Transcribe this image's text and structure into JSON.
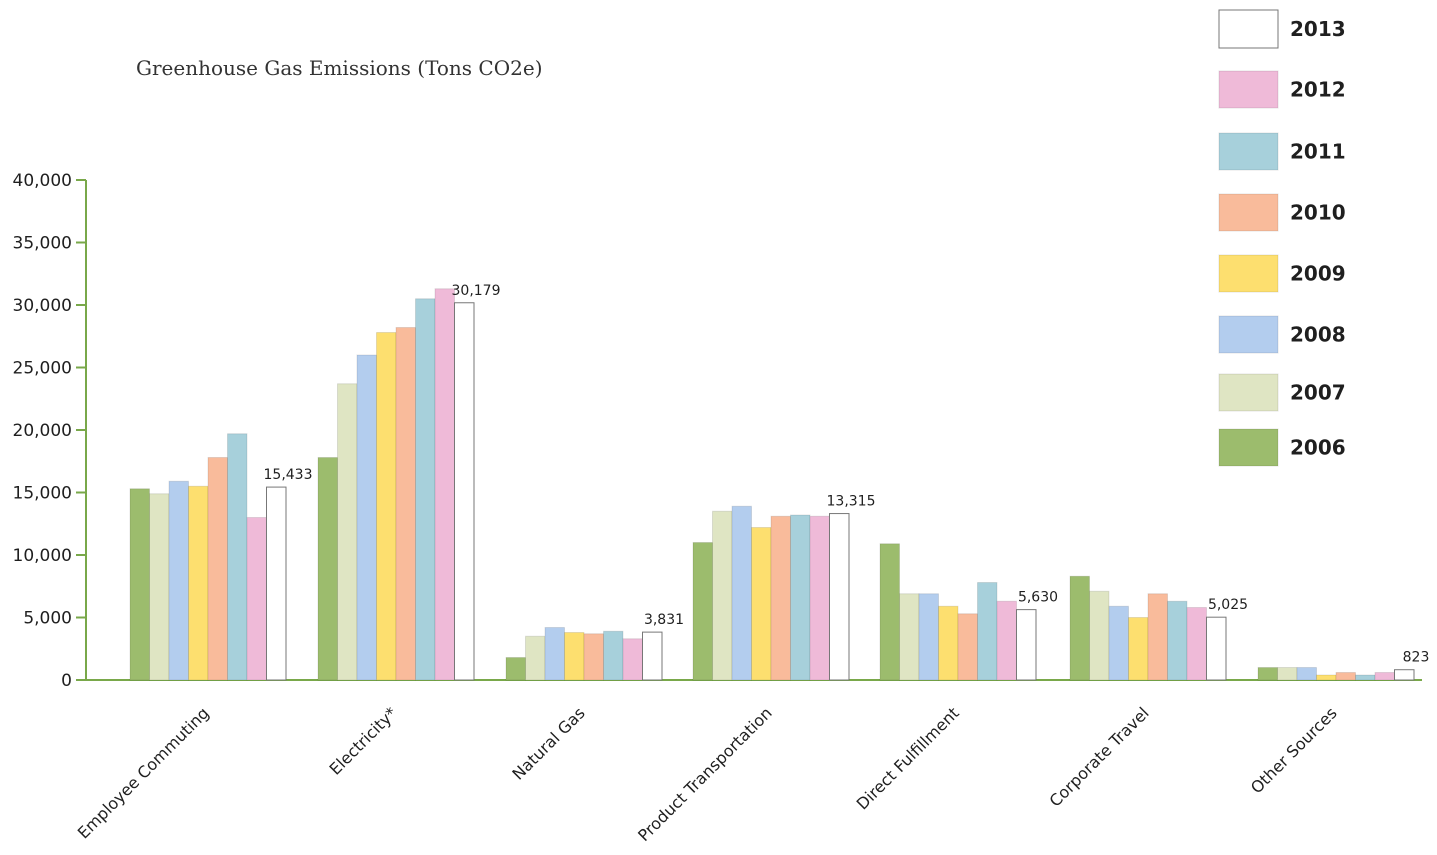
{
  "chart_data": {
    "type": "bar",
    "title": "Greenhouse Gas Emissions (Tons CO2e)",
    "xlabel": "",
    "ylabel": "",
    "ylim": [
      0,
      40000
    ],
    "yticks": [
      0,
      5000,
      10000,
      15000,
      20000,
      25000,
      30000,
      35000,
      40000
    ],
    "ytick_labels": [
      "0",
      "5,000",
      "10,000",
      "15,000",
      "20,000",
      "25,000",
      "30,000",
      "35,000",
      "40,000"
    ],
    "categories": [
      "Employee Commuting",
      "Electricity*",
      "Natural Gas",
      "Product Transportation",
      "Direct Fulfillment",
      "Corporate Travel",
      "Other Sources"
    ],
    "series": [
      {
        "name": "2006",
        "color": "#9cbc6d",
        "values": [
          15300,
          17800,
          1800,
          11000,
          10900,
          8300,
          1000
        ]
      },
      {
        "name": "2007",
        "color": "#dfe5c3",
        "values": [
          14900,
          23700,
          3500,
          13500,
          6900,
          7100,
          1000
        ]
      },
      {
        "name": "2008",
        "color": "#b3cdee",
        "values": [
          15900,
          26000,
          4200,
          13900,
          6900,
          5900,
          1000
        ]
      },
      {
        "name": "2009",
        "color": "#fddf6f",
        "values": [
          15500,
          27800,
          3800,
          12200,
          5900,
          5000,
          400
        ]
      },
      {
        "name": "2010",
        "color": "#f9bb9b",
        "values": [
          17800,
          28200,
          3700,
          13100,
          5300,
          6900,
          600
        ]
      },
      {
        "name": "2011",
        "color": "#a7d0db",
        "values": [
          19700,
          30500,
          3900,
          13200,
          7800,
          6300,
          400
        ]
      },
      {
        "name": "2012",
        "color": "#efbad8",
        "values": [
          13000,
          31300,
          3300,
          13100,
          6300,
          5800,
          600
        ]
      },
      {
        "name": "2013",
        "color": "#ffffff",
        "values": [
          15433,
          30179,
          3831,
          13315,
          5630,
          5025,
          823
        ]
      }
    ],
    "data_labels": [
      "15,433",
      "30,179",
      "3,831",
      "13,315",
      "5,630",
      "5,025",
      "823"
    ],
    "legend_order": [
      "2013",
      "2012",
      "2011",
      "2010",
      "2009",
      "2008",
      "2007",
      "2006"
    ],
    "grid": false,
    "legend_position": "right"
  }
}
